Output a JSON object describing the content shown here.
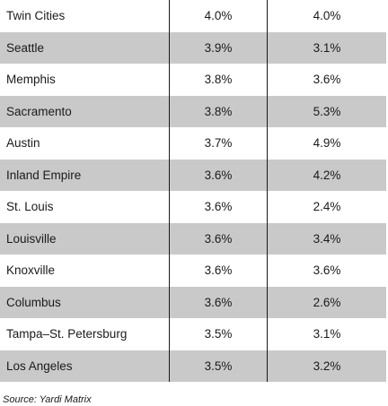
{
  "chart_data": {
    "type": "table",
    "columns": [
      "",
      "",
      ""
    ],
    "rows": [
      {
        "city": "Twin Cities",
        "v1": "4.0%",
        "v2": "4.0%"
      },
      {
        "city": "Seattle",
        "v1": "3.9%",
        "v2": "3.1%"
      },
      {
        "city": "Memphis",
        "v1": "3.8%",
        "v2": "3.6%"
      },
      {
        "city": "Sacramento",
        "v1": "3.8%",
        "v2": "5.3%"
      },
      {
        "city": "Austin",
        "v1": "3.7%",
        "v2": "4.9%"
      },
      {
        "city": "Inland Empire",
        "v1": "3.6%",
        "v2": "4.2%"
      },
      {
        "city": "St. Louis",
        "v1": "3.6%",
        "v2": "2.4%"
      },
      {
        "city": "Louisville",
        "v1": "3.6%",
        "v2": "3.4%"
      },
      {
        "city": "Knoxville",
        "v1": "3.6%",
        "v2": "3.6%"
      },
      {
        "city": "Columbus",
        "v1": "3.6%",
        "v2": "2.6%"
      },
      {
        "city": "Tampa–St. Petersburg",
        "v1": "3.5%",
        "v2": "3.1%"
      },
      {
        "city": "Los Angeles",
        "v1": "3.5%",
        "v2": "3.2%"
      }
    ]
  },
  "source": "Source: Yardi Matrix",
  "colors": {
    "shaded_row": "#c9c9c9",
    "text": "#1a1a1a",
    "background": "#ffffff"
  }
}
